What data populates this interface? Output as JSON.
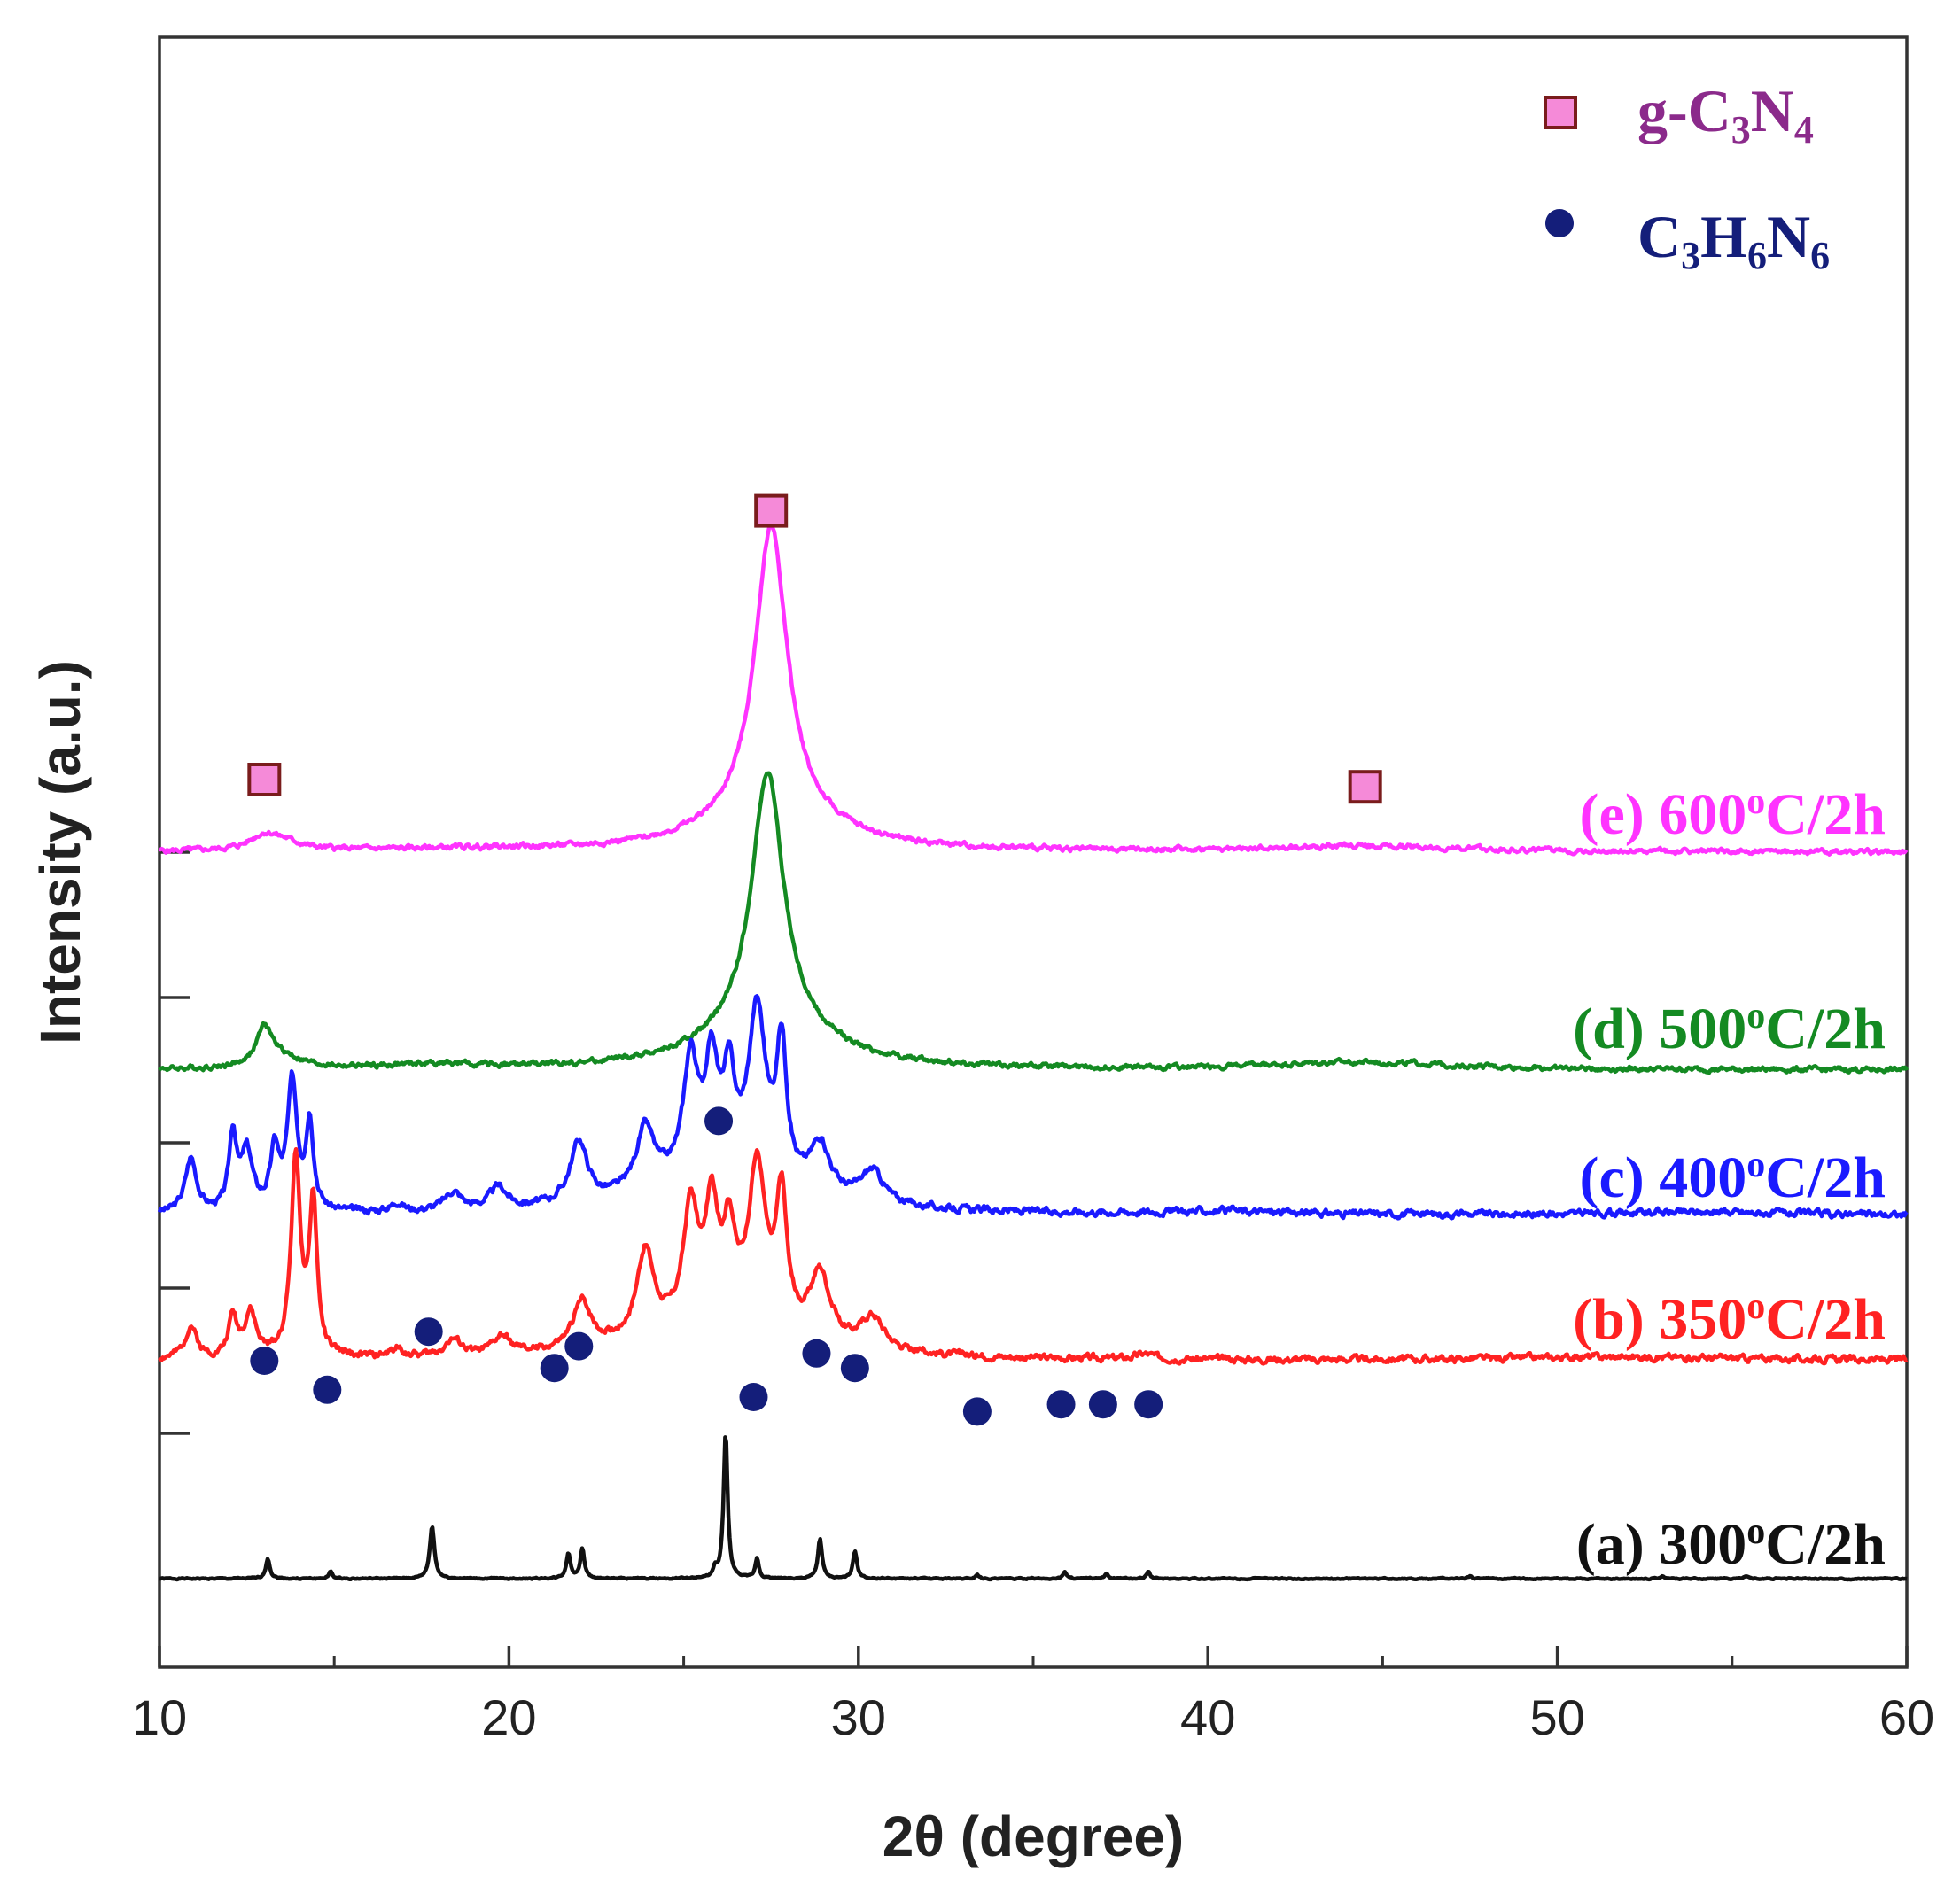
{
  "chart_data": {
    "type": "line",
    "title": "",
    "xlabel": "2θ (degree)",
    "ylabel": "Intensity (a.u.)",
    "xlim": [
      10,
      60
    ],
    "ylim": [
      0,
      15
    ],
    "xticks": [
      10,
      20,
      30,
      40,
      50,
      60
    ],
    "xtick_labels": [
      "10",
      "20",
      "30",
      "40",
      "50",
      "60"
    ],
    "yticks": [
      2,
      4,
      6,
      8,
      10
    ],
    "ytick_labels_shown": false,
    "colors": {
      "e": "#ff33ff",
      "d": "#148a22",
      "c": "#1a1aff",
      "b": "#ff2222",
      "a": "#111111",
      "gc3n4_marker": "#f58ad8",
      "gc3n4_marker_edge": "#7a1c1c",
      "gc3n4_text": "#8b2a8b",
      "c3h6n6_marker": "#141e7a",
      "c3h6n6_text": "#141e7a"
    },
    "legend": {
      "position": "top-right",
      "items": [
        {
          "marker": "square",
          "name": "g-C3N4",
          "parts": [
            [
              "g-C",
              ""
            ],
            [
              "3",
              "sub"
            ],
            [
              "N",
              ""
            ],
            [
              "4",
              "sub"
            ]
          ]
        },
        {
          "marker": "circle",
          "name": "C3H6N6",
          "parts": [
            [
              "C",
              ""
            ],
            [
              "3",
              "sub"
            ],
            [
              "H",
              ""
            ],
            [
              "6",
              "sub"
            ],
            [
              "N",
              ""
            ],
            [
              "6",
              "sub"
            ]
          ]
        }
      ]
    },
    "series": [
      {
        "id": "e",
        "name": "(e) 600°C/2h",
        "label_parts": [
          [
            "(e) 600",
            ""
          ],
          [
            "o",
            "sup"
          ],
          [
            "C/2h",
            ""
          ]
        ],
        "baseline": 10.0,
        "noise": 0.022,
        "seed": 5,
        "peaks": [
          {
            "x": 13.0,
            "h": 0.2,
            "w": 0.5
          },
          {
            "x": 13.6,
            "h": 0.1,
            "w": 0.6
          },
          {
            "x": 27.5,
            "h": 4.0,
            "w": 0.55
          },
          {
            "x": 27.5,
            "h": 0.5,
            "w": 2.0
          },
          {
            "x": 44.5,
            "h": 0.08,
            "w": 3.0
          },
          {
            "x": 18.5,
            "h": 0.03,
            "w": 3.0
          }
        ]
      },
      {
        "id": "d",
        "name": "(d) 500°C/2h",
        "label_parts": [
          [
            "(d) 500",
            ""
          ],
          [
            "o",
            "sup"
          ],
          [
            "C/2h",
            ""
          ]
        ],
        "baseline": 7.0,
        "noise": 0.022,
        "seed": 4,
        "peaks": [
          {
            "x": 13.0,
            "h": 0.5,
            "w": 0.28
          },
          {
            "x": 13.5,
            "h": 0.15,
            "w": 0.7
          },
          {
            "x": 27.4,
            "h": 3.55,
            "w": 0.55
          },
          {
            "x": 27.4,
            "h": 0.55,
            "w": 2.0
          },
          {
            "x": 44.5,
            "h": 0.1,
            "w": 3.0
          },
          {
            "x": 17.8,
            "h": 0.06,
            "w": 1.5
          }
        ]
      },
      {
        "id": "c",
        "name": "(c) 400°C/2h",
        "label_parts": [
          [
            "(c) 400",
            ""
          ],
          [
            "o",
            "sup"
          ],
          [
            "C/2h",
            ""
          ]
        ],
        "baseline": 5.0,
        "noise": 0.03,
        "seed": 3,
        "peaks": [
          {
            "x": 10.9,
            "h": 0.75,
            "w": 0.2
          },
          {
            "x": 12.1,
            "h": 1.05,
            "w": 0.13
          },
          {
            "x": 12.5,
            "h": 0.8,
            "w": 0.2
          },
          {
            "x": 13.3,
            "h": 0.8,
            "w": 0.15
          },
          {
            "x": 13.8,
            "h": 1.75,
            "w": 0.17
          },
          {
            "x": 14.3,
            "h": 1.2,
            "w": 0.13
          },
          {
            "x": 16.8,
            "h": 0.12,
            "w": 0.2
          },
          {
            "x": 18.4,
            "h": 0.25,
            "w": 0.3
          },
          {
            "x": 19.7,
            "h": 0.3,
            "w": 0.3
          },
          {
            "x": 22.0,
            "h": 0.85,
            "w": 0.3
          },
          {
            "x": 23.9,
            "h": 0.85,
            "w": 0.32
          },
          {
            "x": 25.2,
            "h": 1.6,
            "w": 0.25
          },
          {
            "x": 25.8,
            "h": 1.45,
            "w": 0.22
          },
          {
            "x": 26.3,
            "h": 1.2,
            "w": 0.2
          },
          {
            "x": 27.1,
            "h": 2.3,
            "w": 0.3
          },
          {
            "x": 27.8,
            "h": 1.85,
            "w": 0.18
          },
          {
            "x": 28.9,
            "h": 0.7,
            "w": 0.35
          },
          {
            "x": 30.4,
            "h": 0.45,
            "w": 0.4
          },
          {
            "x": 26.0,
            "h": 0.5,
            "w": 2.5
          },
          {
            "x": 40.5,
            "h": 0.04,
            "w": 2.5
          },
          {
            "x": 54.0,
            "h": 0.04,
            "w": 3.0
          }
        ]
      },
      {
        "id": "b",
        "name": "(b) 350°C/2h",
        "label_parts": [
          [
            "(b) 350",
            ""
          ],
          [
            "o",
            "sup"
          ],
          [
            "C/2h",
            ""
          ]
        ],
        "baseline": 3.0,
        "noise": 0.03,
        "seed": 2,
        "peaks": [
          {
            "x": 10.9,
            "h": 0.45,
            "w": 0.2
          },
          {
            "x": 12.1,
            "h": 0.55,
            "w": 0.15
          },
          {
            "x": 12.6,
            "h": 0.6,
            "w": 0.2
          },
          {
            "x": 13.9,
            "h": 2.75,
            "w": 0.16
          },
          {
            "x": 14.4,
            "h": 2.1,
            "w": 0.13
          },
          {
            "x": 16.8,
            "h": 0.12,
            "w": 0.2
          },
          {
            "x": 18.4,
            "h": 0.22,
            "w": 0.3
          },
          {
            "x": 19.8,
            "h": 0.25,
            "w": 0.3
          },
          {
            "x": 22.1,
            "h": 0.65,
            "w": 0.32
          },
          {
            "x": 23.9,
            "h": 1.2,
            "w": 0.3
          },
          {
            "x": 25.2,
            "h": 1.6,
            "w": 0.25
          },
          {
            "x": 25.8,
            "h": 1.5,
            "w": 0.22
          },
          {
            "x": 26.3,
            "h": 1.15,
            "w": 0.2
          },
          {
            "x": 27.1,
            "h": 2.2,
            "w": 0.3
          },
          {
            "x": 27.8,
            "h": 1.8,
            "w": 0.18
          },
          {
            "x": 28.9,
            "h": 0.95,
            "w": 0.35
          },
          {
            "x": 30.4,
            "h": 0.45,
            "w": 0.4
          },
          {
            "x": 26.0,
            "h": 0.45,
            "w": 2.5
          },
          {
            "x": 38.2,
            "h": 0.07,
            "w": 0.3
          },
          {
            "x": 52.0,
            "h": 0.05,
            "w": 4.0
          }
        ]
      },
      {
        "id": "a",
        "name": "(a) 300°C/2h",
        "label_parts": [
          [
            "(a) 300",
            ""
          ],
          [
            "o",
            "sup"
          ],
          [
            "C/2h",
            ""
          ]
        ],
        "baseline": 0.0,
        "noise": 0.006,
        "seed": 1,
        "peaks": [
          {
            "x": 13.1,
            "h": 0.28,
            "w": 0.07
          },
          {
            "x": 14.9,
            "h": 0.1,
            "w": 0.06
          },
          {
            "x": 17.8,
            "h": 0.72,
            "w": 0.08
          },
          {
            "x": 21.7,
            "h": 0.35,
            "w": 0.07
          },
          {
            "x": 22.1,
            "h": 0.42,
            "w": 0.07
          },
          {
            "x": 25.9,
            "h": 0.12,
            "w": 0.06
          },
          {
            "x": 26.2,
            "h": 2.0,
            "w": 0.07
          },
          {
            "x": 27.1,
            "h": 0.28,
            "w": 0.06
          },
          {
            "x": 28.9,
            "h": 0.55,
            "w": 0.07
          },
          {
            "x": 29.9,
            "h": 0.38,
            "w": 0.07
          },
          {
            "x": 33.4,
            "h": 0.06,
            "w": 0.06
          },
          {
            "x": 35.9,
            "h": 0.1,
            "w": 0.06
          },
          {
            "x": 37.1,
            "h": 0.06,
            "w": 0.06
          },
          {
            "x": 38.3,
            "h": 0.1,
            "w": 0.06
          },
          {
            "x": 47.5,
            "h": 0.03,
            "w": 0.08
          },
          {
            "x": 53.0,
            "h": 0.03,
            "w": 0.08
          },
          {
            "x": 55.4,
            "h": 0.03,
            "w": 0.08
          }
        ]
      }
    ],
    "annotations": {
      "gc3n4_markers": [
        {
          "x": 13.0,
          "y": 11.0
        },
        {
          "x": 27.5,
          "y": 14.7
        },
        {
          "x": 44.5,
          "y": 10.9
        }
      ],
      "c3h6n6_markers": [
        {
          "x": 26.0,
          "y": 6.3
        },
        {
          "x": 13.0,
          "y": 3.0
        },
        {
          "x": 14.8,
          "y": 2.6
        },
        {
          "x": 17.7,
          "y": 3.4
        },
        {
          "x": 21.3,
          "y": 2.9
        },
        {
          "x": 22.0,
          "y": 3.2
        },
        {
          "x": 27.0,
          "y": 2.5
        },
        {
          "x": 28.8,
          "y": 3.1
        },
        {
          "x": 29.9,
          "y": 2.9
        },
        {
          "x": 33.4,
          "y": 2.3
        },
        {
          "x": 35.8,
          "y": 2.4
        },
        {
          "x": 37.0,
          "y": 2.4
        },
        {
          "x": 38.3,
          "y": 2.4
        }
      ]
    }
  }
}
